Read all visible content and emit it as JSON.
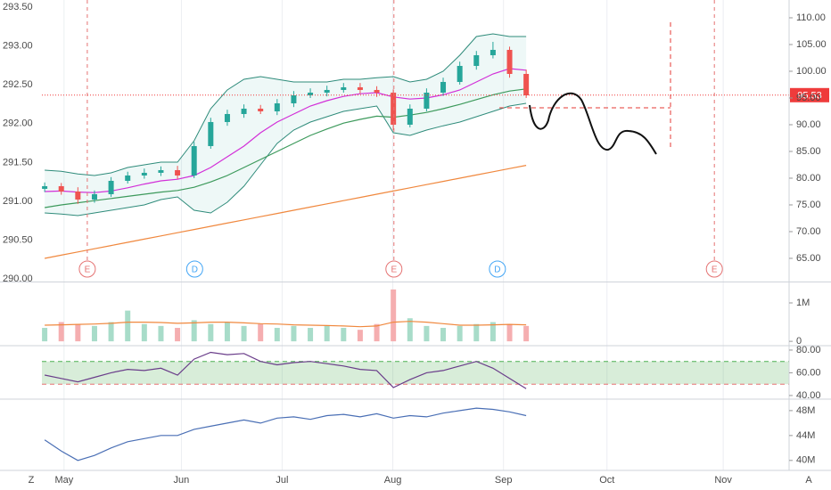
{
  "chart_data": [
    {
      "type": "candlestick",
      "x": [
        0,
        3,
        6,
        9,
        12,
        15,
        18,
        21,
        24,
        27,
        30,
        33,
        36,
        39,
        42,
        45,
        48,
        51,
        54,
        57,
        60,
        63,
        66,
        69,
        72,
        75,
        78,
        81,
        84,
        87
      ],
      "open": [
        78.0,
        78.5,
        77.5,
        76.0,
        77.0,
        79.5,
        80.5,
        81.0,
        81.5,
        80.5,
        86.0,
        90.5,
        92.0,
        93.0,
        92.5,
        94.0,
        95.5,
        96.0,
        96.5,
        97.0,
        96.5,
        96.0,
        90.0,
        93.0,
        96.0,
        98.0,
        101.0,
        103.0,
        104.0,
        99.5
      ],
      "high": [
        79.2,
        79.1,
        78.3,
        77.7,
        80.2,
        81.2,
        81.8,
        82.2,
        82.3,
        86.8,
        91.3,
        92.8,
        93.8,
        93.7,
        94.8,
        96.3,
        96.8,
        97.3,
        97.8,
        97.8,
        97.2,
        96.6,
        93.8,
        96.8,
        98.8,
        101.8,
        103.8,
        105.5,
        104.6,
        100.3
      ],
      "low": [
        77.4,
        76.9,
        75.2,
        75.4,
        76.5,
        79.0,
        79.9,
        80.4,
        79.8,
        80.0,
        85.5,
        89.8,
        91.3,
        92.0,
        91.8,
        93.3,
        95.0,
        95.3,
        96.0,
        95.8,
        95.2,
        89.0,
        89.5,
        92.5,
        95.4,
        97.5,
        100.3,
        102.4,
        98.8,
        95.0
      ],
      "close": [
        78.5,
        77.5,
        76.0,
        77.0,
        79.5,
        80.5,
        81.0,
        81.5,
        80.5,
        86.0,
        90.5,
        92.0,
        93.0,
        92.5,
        94.0,
        95.5,
        96.0,
        96.5,
        97.0,
        96.5,
        96.0,
        90.0,
        93.0,
        96.0,
        98.0,
        101.0,
        103.0,
        104.0,
        99.5,
        95.5
      ],
      "up_color": "#26a69a",
      "down_color": "#ef5350",
      "bollinger": {
        "color": "#2e8b7a",
        "fill": "rgba(38,166,154,0.08)",
        "upper": [
          81.5,
          81.3,
          80.8,
          80.5,
          81.0,
          82.0,
          82.5,
          83.0,
          83.0,
          87.0,
          93.0,
          96.5,
          98.5,
          99.0,
          98.5,
          98.0,
          98.0,
          98.0,
          98.5,
          98.5,
          98.8,
          99.0,
          98.0,
          98.5,
          100.0,
          103.0,
          106.5,
          107.0,
          106.5,
          106.5
        ],
        "lower": [
          73.5,
          73.3,
          73.0,
          73.5,
          74.0,
          74.5,
          75.0,
          76.0,
          76.5,
          74.0,
          73.5,
          75.5,
          78.5,
          82.5,
          86.5,
          89.0,
          90.5,
          91.5,
          92.5,
          93.0,
          93.5,
          88.5,
          88.0,
          89.0,
          89.8,
          90.5,
          91.5,
          92.5,
          93.5,
          94.0
        ]
      },
      "series": [
        {
          "color": "#d22fd8",
          "values": [
            77.5,
            77.6,
            77.4,
            77.3,
            77.6,
            78.2,
            78.9,
            79.5,
            79.8,
            80.5,
            82.0,
            84.0,
            86.0,
            88.5,
            90.5,
            92.0,
            93.5,
            94.5,
            95.3,
            95.8,
            96.0,
            95.2,
            94.8,
            95.0,
            95.6,
            96.5,
            98.0,
            99.5,
            100.5,
            100.2
          ]
        },
        {
          "color": "#3d9a5c",
          "values": [
            74.5,
            75.0,
            75.4,
            75.8,
            76.2,
            76.6,
            77.0,
            77.4,
            77.7,
            78.3,
            79.3,
            80.5,
            82.0,
            83.5,
            85.0,
            86.5,
            88.0,
            89.2,
            90.3,
            91.0,
            91.6,
            91.4,
            91.8,
            92.3,
            93.0,
            93.8,
            94.7,
            95.6,
            96.3,
            96.7
          ]
        },
        {
          "color": "#f0883e",
          "values": [
            65.0,
            65.6,
            66.2,
            66.8,
            67.4,
            68.0,
            68.6,
            69.2,
            69.8,
            70.4,
            71.0,
            71.6,
            72.2,
            72.8,
            73.4,
            74.0,
            74.6,
            75.2,
            75.8,
            76.4,
            77.0,
            77.6,
            78.2,
            78.8,
            79.4,
            80.0,
            80.6,
            81.2,
            81.8,
            82.4
          ]
        }
      ],
      "xlim": [
        -0.5,
        134.5
      ],
      "ylim": [
        60.83,
        113.33
      ],
      "yticks": [
        {
          "value": 65,
          "label": "65.00"
        },
        {
          "value": 70,
          "label": "70.00"
        },
        {
          "value": 75,
          "label": "75.00"
        },
        {
          "value": 80,
          "label": "80.00"
        },
        {
          "value": 85,
          "label": "85.00"
        },
        {
          "value": 90,
          "label": "90.00"
        },
        {
          "value": 95,
          "label": "95.00"
        },
        {
          "value": 100,
          "label": "100.00"
        },
        {
          "value": 105,
          "label": "105.00"
        },
        {
          "value": 110,
          "label": "110.00"
        }
      ],
      "y2lim": [
        289.98,
        293.59
      ],
      "y2ticks": [
        {
          "value": 290,
          "label": "290.00"
        },
        {
          "value": 290.5,
          "label": "290.50"
        },
        {
          "value": 291,
          "label": "291.00"
        },
        {
          "value": 291.5,
          "label": "291.50"
        },
        {
          "value": 292,
          "label": "292.00"
        },
        {
          "value": 292.5,
          "label": "292.50"
        },
        {
          "value": 293,
          "label": "293.00"
        },
        {
          "value": 293.5,
          "label": "293.50"
        }
      ],
      "last_price": 95.53,
      "last_price_color": "#ef3b3b",
      "events": [
        {
          "x": 7.7,
          "label": "E",
          "color": "#e57373",
          "dashed_line": true
        },
        {
          "x": 27.1,
          "label": "D",
          "color": "#42a5f5",
          "dashed_line": false
        },
        {
          "x": 63.1,
          "label": "E",
          "color": "#e57373",
          "dashed_line": true
        },
        {
          "x": 81.8,
          "label": "D",
          "color": "#42a5f5",
          "dashed_line": false
        },
        {
          "x": 121.0,
          "label": "E",
          "color": "#e57373",
          "dashed_line": true
        }
      ]
    },
    {
      "type": "bar",
      "x": [
        0,
        3,
        6,
        9,
        12,
        15,
        18,
        21,
        24,
        27,
        30,
        33,
        36,
        39,
        42,
        45,
        48,
        51,
        54,
        57,
        60,
        63,
        66,
        69,
        72,
        75,
        78,
        81,
        84,
        87
      ],
      "values": [
        0.35,
        0.5,
        0.45,
        0.4,
        0.5,
        0.8,
        0.45,
        0.4,
        0.35,
        0.55,
        0.45,
        0.5,
        0.4,
        0.45,
        0.35,
        0.4,
        0.35,
        0.4,
        0.35,
        0.3,
        0.45,
        1.35,
        0.6,
        0.4,
        0.35,
        0.4,
        0.45,
        0.5,
        0.45,
        0.4
      ],
      "up_color": "#a8dcc9",
      "down_color": "#f5aeb0",
      "series": [
        {
          "color": "#f0883e",
          "values": [
            0.42,
            0.43,
            0.44,
            0.45,
            0.47,
            0.5,
            0.5,
            0.49,
            0.47,
            0.48,
            0.5,
            0.5,
            0.48,
            0.46,
            0.45,
            0.43,
            0.42,
            0.41,
            0.4,
            0.38,
            0.4,
            0.5,
            0.52,
            0.5,
            0.46,
            0.42,
            0.42,
            0.43,
            0.44,
            0.43
          ]
        }
      ],
      "xlim": [
        -0.5,
        134.5
      ],
      "ylim": [
        -0.09,
        1.51
      ],
      "yticks": [
        0,
        {
          "value": 1,
          "label": "1M"
        }
      ]
    },
    {
      "type": "line",
      "x": [
        0,
        3,
        6,
        9,
        12,
        15,
        18,
        21,
        24,
        27,
        30,
        33,
        36,
        39,
        42,
        45,
        48,
        51,
        54,
        57,
        60,
        63,
        66,
        69,
        72,
        75,
        78,
        81,
        84,
        87
      ],
      "series": [
        {
          "color": "#6a3d8a",
          "values": [
            58,
            55,
            52,
            56,
            60,
            63,
            62,
            64,
            58,
            72,
            78,
            76,
            77,
            70,
            67,
            69,
            70,
            68,
            66,
            63,
            62,
            47,
            54,
            60,
            62,
            66,
            70,
            64,
            55,
            46
          ]
        }
      ],
      "band": [
        50,
        70
      ],
      "band_color": "#4caf50",
      "xlim": [
        -0.5,
        134.5
      ],
      "ylim": [
        37.6,
        83.1
      ],
      "yticks": [
        {
          "value": 40,
          "label": "40.00"
        },
        {
          "value": 60,
          "label": "60.00"
        },
        {
          "value": 80,
          "label": "80.00"
        }
      ]
    },
    {
      "type": "line",
      "x": [
        0,
        3,
        6,
        9,
        12,
        15,
        18,
        21,
        24,
        27,
        30,
        33,
        36,
        39,
        42,
        45,
        48,
        51,
        54,
        57,
        60,
        63,
        66,
        69,
        72,
        75,
        78,
        81,
        84,
        87
      ],
      "series": [
        {
          "color": "#4a6fb5",
          "values": [
            43.3,
            41.5,
            40.0,
            40.8,
            42.0,
            43.0,
            43.5,
            44.0,
            44.0,
            45.0,
            45.5,
            46.0,
            46.5,
            46.0,
            46.8,
            47.0,
            46.6,
            47.2,
            47.4,
            47.0,
            47.5,
            46.8,
            47.2,
            47.0,
            47.6,
            48.0,
            48.4,
            48.2,
            47.8,
            47.2
          ]
        }
      ],
      "xlim": [
        -0.5,
        134.5
      ],
      "ylim": [
        38.4,
        49.7
      ],
      "yticks": [
        {
          "value": 40,
          "label": "40M"
        },
        {
          "value": 44,
          "label": "44M"
        },
        {
          "value": 48,
          "label": "48M"
        }
      ],
      "xgrid": true,
      "xticks": [
        {
          "value": 3.5,
          "label": "May"
        },
        {
          "value": 24.7,
          "label": "Jun"
        },
        {
          "value": 42.9,
          "label": "Jul"
        },
        {
          "value": 62.9,
          "label": "Aug"
        },
        {
          "value": 82.9,
          "label": "Sep"
        },
        {
          "value": 101.6,
          "label": "Oct"
        },
        {
          "value": 122.6,
          "label": "Nov"
        }
      ]
    }
  ],
  "toolbar": {
    "left": "Z",
    "right": "A"
  }
}
